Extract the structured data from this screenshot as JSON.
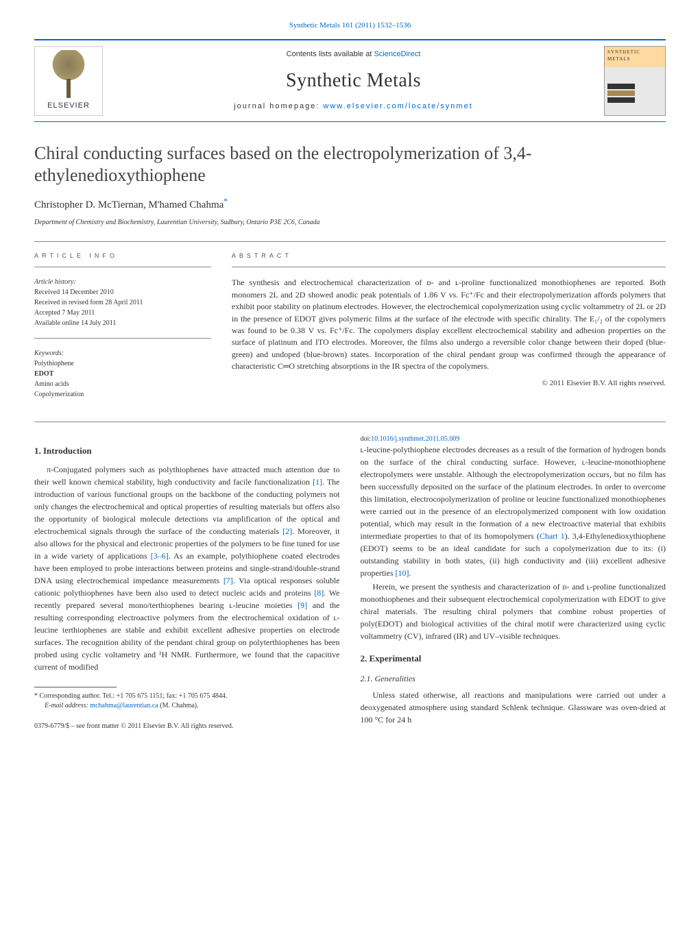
{
  "top_link": "Synthetic Metals 161 (2011) 1532–1536",
  "header": {
    "publisher": "ELSEVIER",
    "avail_prefix": "Contents lists available at ",
    "avail_link": "ScienceDirect",
    "journal_title": "Synthetic Metals",
    "homepage_prefix": "journal homepage: ",
    "homepage_link": "www.elsevier.com/locate/synmet",
    "cover_title": "SYNTHETIC METALS"
  },
  "article": {
    "title": "Chiral conducting surfaces based on the electropolymerization of 3,4-ethylenedioxythiophene",
    "authors": "Christopher D. McTiernan, M'hamed Chahma",
    "corr_mark": "*",
    "affiliation": "Department of Chemistry and Biochemistry, Laurentian University, Sudbury, Ontario P3E 2C6, Canada"
  },
  "info": {
    "label": "ARTICLE INFO",
    "history_hdr": "Article history:",
    "history": [
      "Received 14 December 2010",
      "Received in revised form 28 April 2011",
      "Accepted 7 May 2011",
      "Available online 14 July 2011"
    ],
    "keywords_hdr": "Keywords:",
    "keywords": [
      "Polythiophene",
      "EDOT",
      "Amino acids",
      "Copolymerization"
    ]
  },
  "abstract": {
    "label": "ABSTRACT",
    "text": "The synthesis and electrochemical characterization of ᴅ- and ʟ-proline functionalized monothiophenes are reported. Both monomers 2L and 2D showed anodic peak potentials of 1.86 V vs. Fc⁺/Fc and their electropolymerization affords polymers that exhibit poor stability on platinum electrodes. However, the electrochemical copolymerization using cyclic voltammetry of 2L or 2D in the presence of EDOT gives polymeric films at the surface of the electrode with specific chirality. The E₁/₂ of the copolymers was found to be 0.38 V vs. Fc⁺/Fc. The copolymers display excellent electrochemical stability and adhesion properties on the surface of platinum and ITO electrodes. Moreover, the films also undergo a reversible color change between their doped (blue-green) and undoped (blue-brown) states. Incorporation of the chiral pendant group was confirmed through the appearance of characteristic C═O stretching absorptions in the IR spectra of the copolymers.",
    "copyright": "© 2011 Elsevier B.V. All rights reserved."
  },
  "body": {
    "h1": "1.  Introduction",
    "p1a": "π-Conjugated polymers such as polythiophenes have attracted much attention due to their well known chemical stability, high conductivity and facile functionalization ",
    "r1": "[1]",
    "p1b": ". The introduction of various functional groups on the backbone of the conducting polymers not only changes the electrochemical and optical properties of resulting materials but offers also the opportunity of biological molecule detections via amplification of the optical and electrochemical signals through the surface of the conducting materials ",
    "r2": "[2]",
    "p1c": ". Moreover, it also allows for the physical and electronic properties of the polymers to be fine tuned for use in a wide variety of applications ",
    "r3": "[3–6]",
    "p1d": ". As an example, polythiophene coated electrodes have been employed to probe interactions between proteins and single-strand/double-strand DNA using electrochemical impedance measurements ",
    "r7": "[7]",
    "p1e": ". Via optical responses soluble cationic polythiophenes have been also used to detect nucleic acids and proteins ",
    "r8": "[8]",
    "p1f": ". We recently prepared several mono/terthiophenes bearing ʟ-leucine moieties ",
    "r9": "[9]",
    "p1g": " and the resulting corresponding electroactive polymers from the electrochemical oxidation of ʟ-leucine terthiophenes are stable and exhibit excellent adhesive properties on electrode surfaces. The recognition ability of the pendant chiral group on polyterthiophenes has been probed using cyclic voltametry and ¹H NMR. Furthermore, we found that the capacitive current of modified ",
    "p2a": "ʟ-leucine-polythiophene electrodes decreases as a result of the formation of hydrogen bonds on the surface of the chiral conducting surface. However, ʟ-leucine-monothiophene electropolymers were unstable. Although the electropolymerization occurs, but no film has been successfully deposited on the surface of the platinum electrodes. In order to overcome this limitation, electrocopolymerization of proline or leucine functionalized monothiophenes were carried out in the presence of an electropolymerized component with low oxidation potential, which may result in the formation of a new electroactive material that exhibits intermediate properties to that of its homopolymers (",
    "rchart": "Chart 1",
    "p2b": "). 3,4-Ethylenedioxythiophene (EDOT) seems to be an ideal candidate for such a copolymerization due to its: (i) outstanding stability in both states, (ii) high conductivity and (iii) excellent adhesive properties ",
    "r10": "[10]",
    "p2c": ".",
    "p3": "Herein, we present the synthesis and characterization of ᴅ- and ʟ-proline functionalized monothiophenes and their subsequent electrochemical copolymerization with EDOT to give chiral materials. The resulting chiral polymers that combine robust properties of poly(EDOT) and biological activities of the chiral motif were characterized using cyclic voltammetry (CV), infrared (IR) and UV–visible techniques.",
    "h2": "2.  Experimental",
    "h21": "2.1.  Generalities",
    "p4": "Unless stated otherwise, all reactions and manipulations were carried out under a deoxygenated atmosphere using standard Schlenk technique. Glassware was oven-dried at 100 °C for 24 h"
  },
  "footnote": {
    "corr": "* Corresponding author. Tel.: +1 705 675 1151; fax: +1 705 675 4844.",
    "email_label": "E-mail address: ",
    "email": "mchahma@laurentian.ca",
    "email_suffix": " (M. Chahma)."
  },
  "footer": {
    "line1": "0379-6779/$ – see front matter © 2011 Elsevier B.V. All rights reserved.",
    "doi_prefix": "doi:",
    "doi": "10.1016/j.synthmet.2011.05.009"
  },
  "colors": {
    "link": "#0066cc",
    "rule": "#888888",
    "text": "#333333"
  }
}
